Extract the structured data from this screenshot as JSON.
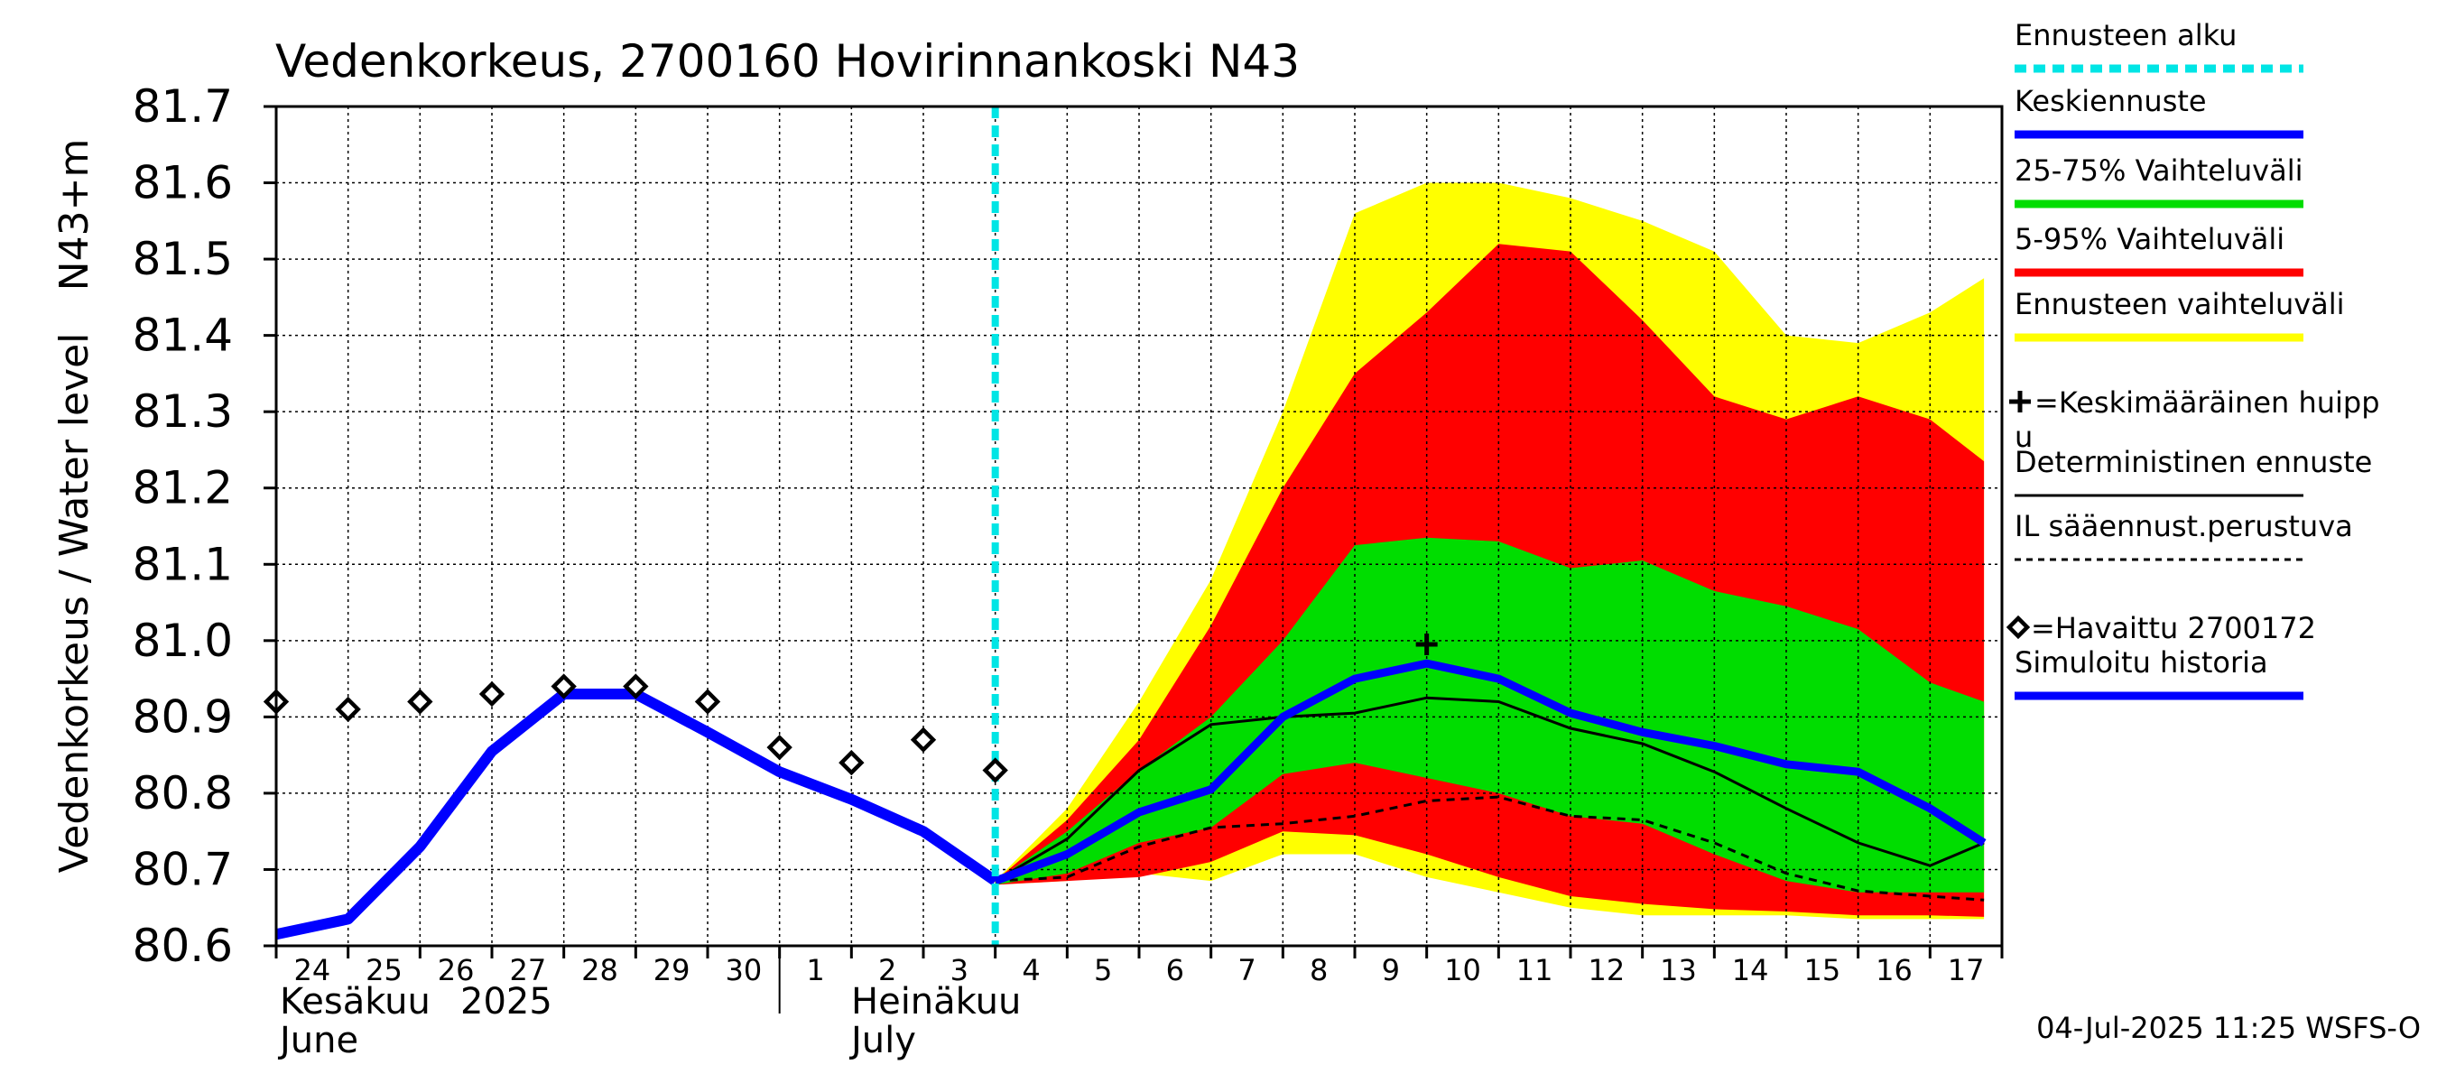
{
  "chart_data": {
    "type": "line",
    "title": "Vedenkorkeus, 2700160 Hovirinnankoski N43",
    "ylabel_left": "Vedenkorkeus / Water level",
    "ylabel_right": "N43+m",
    "ylim": [
      80.6,
      81.7
    ],
    "ytick_labels": [
      "80.6",
      "80.7",
      "80.8",
      "80.9",
      "81.0",
      "81.1",
      "81.2",
      "81.3",
      "81.4",
      "81.5",
      "81.6",
      "81.7"
    ],
    "xlim": [
      "2025-06-24",
      "2025-07-17"
    ],
    "x_day_labels": [
      "24",
      "25",
      "26",
      "27",
      "28",
      "29",
      "30",
      "1",
      "2",
      "3",
      "4",
      "5",
      "6",
      "7",
      "8",
      "9",
      "10",
      "11",
      "12",
      "13",
      "14",
      "15",
      "16",
      "17"
    ],
    "month_labels": [
      {
        "fi": "Kesäkuu",
        "year": "2025",
        "en": "June"
      },
      {
        "fi": "Heinäkuu",
        "en": "July"
      }
    ],
    "forecast_start": "2025-07-04",
    "grid": true,
    "timestamp": "04-Jul-2025 11:25 WSFS-O",
    "legend": {
      "placement": "right",
      "items": [
        {
          "key": "forecast_start",
          "label": "Ennusteen alku",
          "color": "#00e5e5",
          "style": "dashed"
        },
        {
          "key": "mean",
          "label": "Keskiennuste",
          "color": "#0000ff",
          "style": "thick"
        },
        {
          "key": "p25_75",
          "label": "25-75% Vaihteluväli",
          "color": "#00dd00",
          "style": "band"
        },
        {
          "key": "p5_95",
          "label": "5-95% Vaihteluväli",
          "color": "#ff0000",
          "style": "band"
        },
        {
          "key": "range",
          "label": "Ennusteen vaihteluväli",
          "color": "#ffff00",
          "style": "band"
        },
        {
          "key": "peak",
          "label": "+=Keskimääräinen huippu",
          "color": "#000000",
          "style": "marker"
        },
        {
          "key": "deterministic",
          "label": "Deterministinen ennuste",
          "color": "#000000",
          "style": "thin"
        },
        {
          "key": "il",
          "label": "IL sääennust.perustuva",
          "color": "#000000",
          "style": "dashed"
        },
        {
          "key": "observed",
          "label": "=Havaittu 2700172",
          "color": "#000000",
          "style": "diamond"
        },
        {
          "key": "simulated",
          "label": "Simuloitu historia",
          "color": "#0000ff",
          "style": "thick"
        }
      ]
    },
    "forecast_x": [
      "2025-07-04",
      "2025-07-05",
      "2025-07-06",
      "2025-07-07",
      "2025-07-08",
      "2025-07-09",
      "2025-07-10",
      "2025-07-11",
      "2025-07-12",
      "2025-07-13",
      "2025-07-14",
      "2025-07-15",
      "2025-07-16",
      "2025-07-17",
      "2025-07-17T18:00"
    ],
    "range_upper": [
      80.685,
      80.78,
      80.92,
      81.08,
      81.3,
      81.56,
      81.6,
      81.6,
      81.58,
      81.55,
      81.51,
      81.4,
      81.39,
      81.43,
      81.475
    ],
    "range_lower": [
      80.68,
      80.685,
      80.695,
      80.685,
      80.72,
      80.72,
      80.69,
      80.67,
      80.65,
      80.64,
      80.64,
      80.64,
      80.635,
      80.635,
      80.635
    ],
    "p95": [
      80.685,
      80.765,
      80.87,
      81.02,
      81.2,
      81.35,
      81.43,
      81.52,
      81.51,
      81.42,
      81.32,
      81.29,
      81.32,
      81.29,
      81.235
    ],
    "p5": [
      80.68,
      80.685,
      80.69,
      80.71,
      80.75,
      80.745,
      80.72,
      80.69,
      80.665,
      80.655,
      80.648,
      80.645,
      80.64,
      80.64,
      80.638
    ],
    "p75": [
      80.685,
      80.75,
      80.83,
      80.9,
      81.0,
      81.125,
      81.135,
      81.13,
      81.095,
      81.105,
      81.065,
      81.045,
      81.015,
      80.945,
      80.92
    ],
    "p25": [
      80.68,
      80.695,
      80.735,
      80.755,
      80.825,
      80.84,
      80.82,
      80.8,
      80.77,
      80.76,
      80.72,
      80.685,
      80.67,
      80.67,
      80.67
    ],
    "mean_forecast": [
      80.685,
      80.72,
      80.775,
      80.805,
      80.9,
      80.95,
      80.97,
      80.95,
      80.905,
      80.88,
      80.862,
      80.838,
      80.828,
      80.78,
      80.735
    ],
    "deterministic": [
      80.685,
      80.74,
      80.83,
      80.89,
      80.9,
      80.905,
      80.925,
      80.92,
      80.885,
      80.865,
      80.828,
      80.78,
      80.735,
      80.705,
      80.735
    ],
    "il_forecast": [
      80.685,
      80.69,
      80.73,
      80.755,
      80.76,
      80.77,
      80.79,
      80.795,
      80.77,
      80.765,
      80.735,
      80.695,
      80.672,
      80.665,
      80.66
    ],
    "mean_peak": {
      "x": "2025-07-10",
      "y": 80.995
    },
    "simulated_x": [
      "2025-06-24",
      "2025-06-25",
      "2025-06-26",
      "2025-06-27",
      "2025-06-28",
      "2025-06-29",
      "2025-06-30",
      "2025-07-01",
      "2025-07-02",
      "2025-07-03",
      "2025-07-04"
    ],
    "simulated": [
      80.615,
      80.635,
      80.73,
      80.855,
      80.93,
      80.93,
      80.88,
      80.828,
      80.792,
      80.75,
      80.685
    ],
    "observed_x": [
      "2025-06-24",
      "2025-06-25",
      "2025-06-26",
      "2025-06-27",
      "2025-06-28",
      "2025-06-29",
      "2025-06-30",
      "2025-07-01",
      "2025-07-02",
      "2025-07-03",
      "2025-07-04"
    ],
    "observed": [
      80.92,
      80.91,
      80.92,
      80.93,
      80.94,
      80.94,
      80.92,
      80.86,
      80.84,
      80.87,
      80.83
    ]
  }
}
